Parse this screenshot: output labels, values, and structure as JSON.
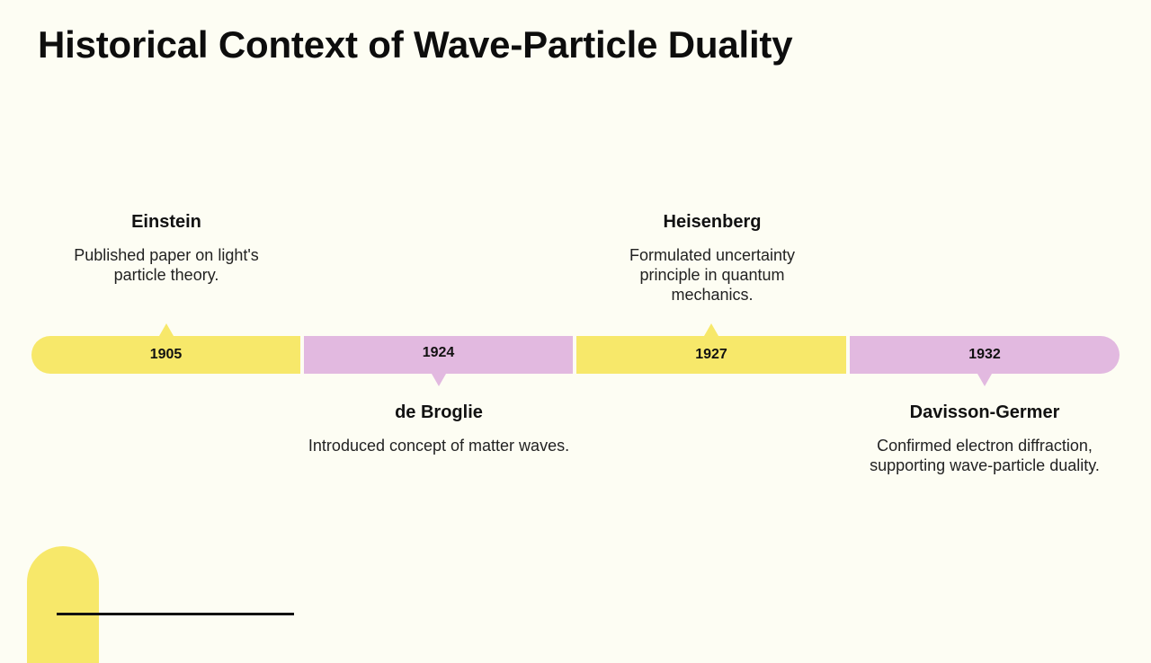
{
  "title": "Historical Context of Wave-Particle Duality",
  "colors": {
    "background": "#fdfdf3",
    "yellow": "#f7e86a",
    "purple": "#e2b9e0"
  },
  "timeline": [
    {
      "year": "1905",
      "name": "Einstein",
      "description": "Published paper on light's particle theory.",
      "color": "#f7e86a",
      "placement": "above"
    },
    {
      "year": "1924",
      "name": "de Broglie",
      "description": "Introduced concept of matter waves.",
      "color": "#e2b9e0",
      "placement": "below"
    },
    {
      "year": "1927",
      "name": "Heisenberg",
      "description": "Formulated uncertainty principle in quantum mechanics.",
      "color": "#f7e86a",
      "placement": "above"
    },
    {
      "year": "1932",
      "name": "Davisson-Germer",
      "description": "Confirmed electron diffraction, supporting wave-particle duality.",
      "color": "#e2b9e0",
      "placement": "below"
    }
  ]
}
